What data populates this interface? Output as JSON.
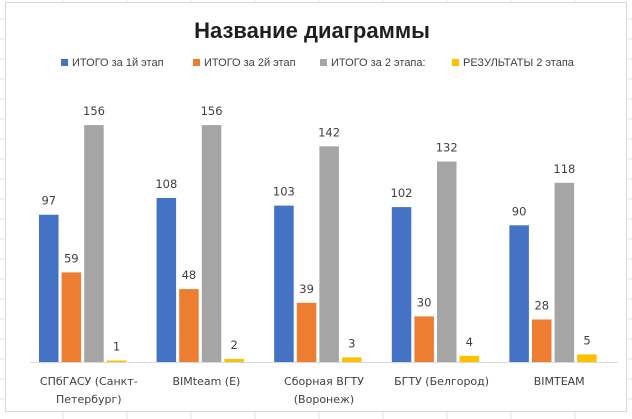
{
  "chart_data": {
    "type": "bar",
    "title": "Название диаграммы",
    "categories": [
      [
        "СПбГАСУ (Санкт-",
        "Петербург)"
      ],
      [
        "BIMteam (Е)"
      ],
      [
        "Сборная ВГТУ",
        "(Воронеж)"
      ],
      [
        "БГТУ (Белгород)"
      ],
      [
        "BIMTEAM"
      ]
    ],
    "series": [
      {
        "name": "ИТОГО за 1й этап",
        "color": "#4472c4",
        "values": [
          97,
          108,
          103,
          102,
          90
        ]
      },
      {
        "name": "ИТОГО за 2й этап",
        "color": "#ed7d31",
        "values": [
          59,
          48,
          39,
          30,
          28
        ]
      },
      {
        "name": "ИТОГО за 2 этапа:",
        "color": "#a5a5a5",
        "values": [
          156,
          156,
          142,
          132,
          118
        ]
      },
      {
        "name": "РЕЗУЛЬТАТЫ  2 этапа",
        "color": "#ffc000",
        "values": [
          1,
          2,
          3,
          4,
          5
        ]
      }
    ],
    "ylim": [
      0,
      160
    ],
    "grid": false,
    "legend_position": "top"
  }
}
